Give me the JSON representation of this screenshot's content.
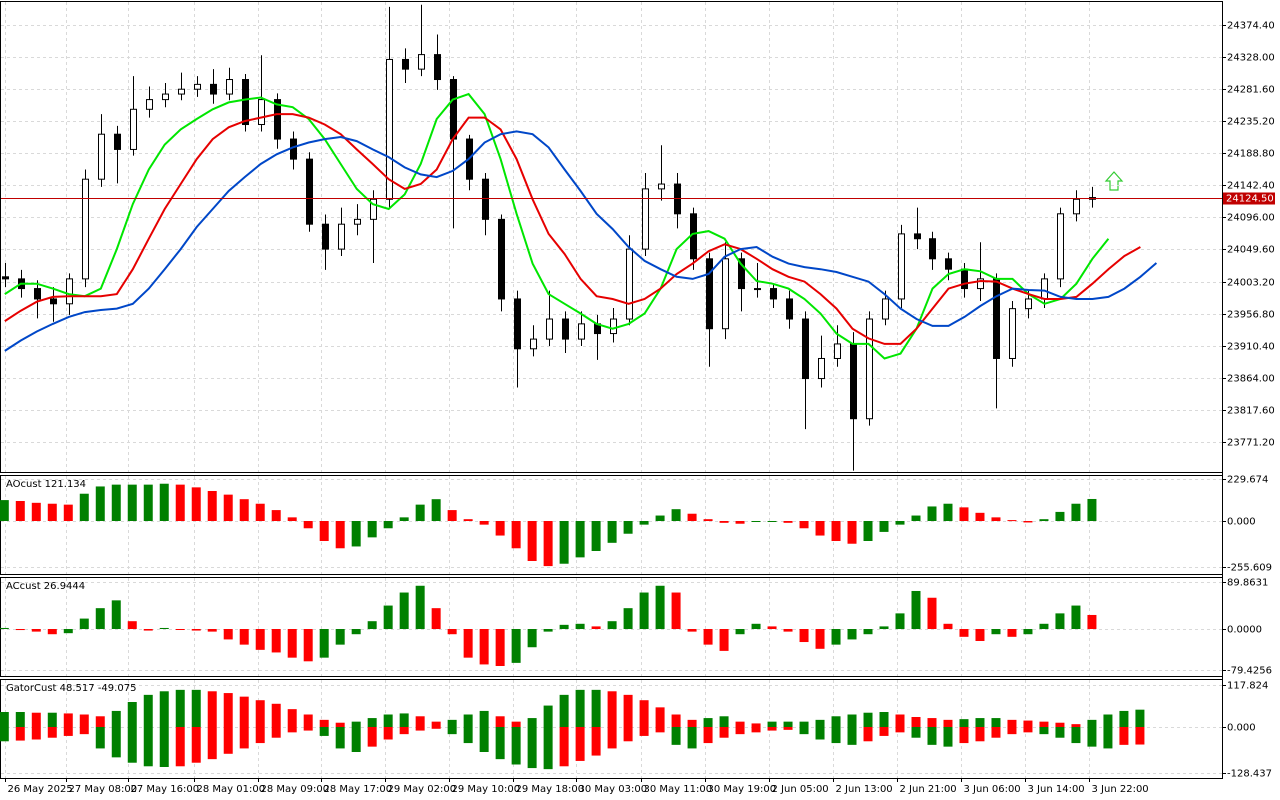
{
  "chart_data": [
    {
      "type": "candlestick",
      "xlim": [
        -0.3,
        76.1
      ],
      "xticks": [
        {
          "value": 0,
          "label": "26 May 2025"
        },
        {
          "value": 3.8,
          "label": "27 May 08:00"
        },
        {
          "value": 7.7,
          "label": "27 May 16:00"
        },
        {
          "value": 11.8,
          "label": "28 May 01:00"
        },
        {
          "value": 15.8,
          "label": "28 May 09:00"
        },
        {
          "value": 19.8,
          "label": "28 May 17:00"
        },
        {
          "value": 23.8,
          "label": "29 May 02:00"
        },
        {
          "value": 27.8,
          "label": "29 May 10:00"
        },
        {
          "value": 31.8,
          "label": "29 May 18:00"
        },
        {
          "value": 35.7,
          "label": "30 May 03:00"
        },
        {
          "value": 39.8,
          "label": "30 May 11:00"
        },
        {
          "value": 43.8,
          "label": "30 May 19:00"
        },
        {
          "value": 47.8,
          "label": "2 Jun 05:00"
        },
        {
          "value": 51.8,
          "label": "2 Jun 13:00"
        },
        {
          "value": 55.8,
          "label": "2 Jun 21:00"
        },
        {
          "value": 59.8,
          "label": "3 Jun 06:00"
        },
        {
          "value": 63.8,
          "label": "3 Jun 14:00"
        },
        {
          "value": 67.8,
          "label": "3 Jun 22:00"
        }
      ],
      "ylim": [
        23728,
        24407
      ],
      "yticks": [
        {
          "value": 24374.4,
          "label": "24374.40"
        },
        {
          "value": 24328,
          "label": "24328.00"
        },
        {
          "value": 24281.6,
          "label": "24281.60"
        },
        {
          "value": 24235.2,
          "label": "24235.20"
        },
        {
          "value": 24188.8,
          "label": "24188.80"
        },
        {
          "value": 24142.4,
          "label": "24142.40"
        },
        {
          "value": 24096,
          "label": "24096.00"
        },
        {
          "value": 24049.6,
          "label": "24049.60"
        },
        {
          "value": 24003.2,
          "label": "24003.20"
        },
        {
          "value": 23956.8,
          "label": "23956.80"
        },
        {
          "value": 23910.4,
          "label": "23910.40"
        },
        {
          "value": 23864,
          "label": "23864.00"
        },
        {
          "value": 23817.6,
          "label": "23817.60"
        },
        {
          "value": 23771.2,
          "label": "23771.20"
        }
      ],
      "grid": true,
      "up_color": "#ffffff",
      "down_color": "#000000",
      "candles": {
        "open": [
          24010,
          24007,
          23993,
          23978,
          23971,
          24007,
          24151,
          24216,
          24194,
          24252,
          24266,
          24274,
          24281,
          24288,
          24274,
          24295,
          24230,
          24266,
          24209,
          24180,
          24086,
          24050,
          24086,
          24093,
          24122,
          24324,
          24310,
          24331,
          24295,
          24209,
          24151,
          24093,
          23978,
          23906,
          23920,
          23949,
          23920,
          23942,
          23928,
          23949,
          24050,
          24137,
          24144,
          24101,
          24036,
          23935,
          24036,
          23993,
          23993,
          23978,
          23949,
          23863,
          23892,
          23913,
          23805,
          23949,
          23978,
          24072,
          24065,
          24036,
          24021,
          23993,
          24007,
          23892,
          23964,
          23978,
          24007,
          24101,
          24122
        ],
        "high": [
          24030,
          24020,
          24005,
          23995,
          24015,
          24165,
          24245,
          24228,
          24300,
          24285,
          24290,
          24305,
          24300,
          24310,
          24312,
          24303,
          24330,
          24275,
          24220,
          24190,
          24100,
          24110,
          24115,
          24135,
          24400,
          24340,
          24403,
          24360,
          24300,
          24215,
          24160,
          24100,
          23990,
          23940,
          23990,
          23960,
          23960,
          23955,
          23965,
          24070,
          24160,
          24200,
          24160,
          24110,
          24045,
          24060,
          24045,
          24030,
          24000,
          23990,
          23960,
          23925,
          23940,
          23930,
          23960,
          23990,
          24085,
          24110,
          24075,
          24045,
          24030,
          24060,
          24015,
          23975,
          23990,
          24015,
          24110,
          24135,
          24140
        ],
        "low": [
          23995,
          23980,
          23950,
          23945,
          23955,
          23995,
          24140,
          24145,
          24185,
          24240,
          24255,
          24265,
          24270,
          24260,
          24265,
          24220,
          24220,
          24195,
          24165,
          24075,
          24020,
          24040,
          24070,
          24030,
          24110,
          24290,
          24300,
          24280,
          24080,
          24135,
          24070,
          23960,
          23850,
          23895,
          23910,
          23900,
          23910,
          23890,
          23915,
          23940,
          24040,
          24120,
          24080,
          24020,
          23880,
          23920,
          23960,
          23980,
          23965,
          23935,
          23790,
          23850,
          23880,
          23730,
          23795,
          23940,
          23965,
          24050,
          24020,
          24005,
          23980,
          23975,
          23820,
          23880,
          23950,
          23965,
          23995,
          24090,
          24110
        ],
        "close": [
          24007,
          23993,
          23978,
          23971,
          24007,
          24151,
          24216,
          24194,
          24252,
          24266,
          24274,
          24281,
          24288,
          24274,
          24295,
          24230,
          24266,
          24209,
          24180,
          24086,
          24050,
          24086,
          24093,
          24122,
          24324,
          24310,
          24331,
          24295,
          24209,
          24151,
          24093,
          23978,
          23906,
          23920,
          23949,
          23920,
          23942,
          23928,
          23949,
          24050,
          24137,
          24144,
          24101,
          24036,
          23935,
          24036,
          23993,
          23993,
          23978,
          23949,
          23863,
          23892,
          23913,
          23805,
          23949,
          23978,
          24072,
          24065,
          24036,
          24021,
          23993,
          24007,
          23892,
          23964,
          23978,
          24007,
          24101,
          24122,
          24124.5
        ]
      },
      "lines": {
        "x": [
          0,
          1,
          2,
          3,
          4,
          5,
          6,
          7,
          8,
          9,
          10,
          11,
          12,
          13,
          14,
          15,
          16,
          17,
          18,
          19,
          20,
          21,
          22,
          23,
          24,
          25,
          26,
          27,
          28,
          29,
          30,
          31,
          32,
          33,
          34,
          35,
          36,
          37,
          38,
          39,
          40,
          41,
          42,
          43,
          44,
          45,
          46,
          47,
          48,
          49,
          50,
          51,
          52,
          53,
          54,
          55,
          56,
          57,
          58,
          59,
          60,
          61,
          62,
          63,
          64,
          65,
          66,
          67,
          68,
          69,
          70,
          71,
          72
        ],
        "series": [
          {
            "color": "#00e600",
            "values": [
              23985,
              24000,
              24000,
              23993,
              23985,
              23982,
              23993,
              24050,
              24115,
              24165,
              24201,
              24223,
              24238,
              24252,
              24262,
              24266,
              24269,
              24259,
              24255,
              24238,
              24209,
              24173,
              24137,
              24115,
              24108,
              24129,
              24173,
              24238,
              24266,
              24274,
              24245,
              24180,
              24101,
              24029,
              23985,
              23971,
              23957,
              23942,
              23935,
              23942,
              23957,
              23993,
              24050,
              24072,
              24076,
              24065,
              24029,
              24004,
              24000,
              23993,
              23978,
              23957,
              23928,
              23913,
              23913,
              23892,
              23899,
              23935,
              23993,
              24014,
              24021,
              24018,
              24007,
              24007,
              23985,
              23971,
              23978,
              24000,
              24036,
              24065,
              null,
              null,
              null
            ]
          },
          {
            "color": "#e60000",
            "values": [
              23946,
              23961,
              23974,
              23981,
              23982,
              23982,
              23982,
              23985,
              24021,
              24065,
              24108,
              24144,
              24180,
              24209,
              24226,
              24235,
              24240,
              24245,
              24245,
              24240,
              24230,
              24216,
              24194,
              24173,
              24151,
              24137,
              24144,
              24165,
              24209,
              24240,
              24240,
              24223,
              24180,
              24122,
              24072,
              24043,
              24007,
              23982,
              23978,
              23971,
              23978,
              23993,
              24014,
              24029,
              24047,
              24057,
              24050,
              24036,
              24021,
              24010,
              24003,
              23985,
              23964,
              23935,
              23921,
              23913,
              23913,
              23935,
              23964,
              23993,
              24000,
              24004,
              24003,
              23993,
              23985,
              23978,
              23978,
              23981,
              24000,
              24021,
              24040,
              24053,
              null
            ]
          },
          {
            "color": "#0047c8",
            "values": [
              23903,
              23918,
              23931,
              23942,
              23952,
              23959,
              23962,
              23964,
              23971,
              23993,
              24021,
              24050,
              24082,
              24108,
              24134,
              24154,
              24173,
              24187,
              24197,
              24204,
              24209,
              24212,
              24206,
              24194,
              24183,
              24168,
              24158,
              24154,
              24163,
              24180,
              24204,
              24216,
              24220,
              24216,
              24197,
              24165,
              24134,
              24101,
              24079,
              24053,
              24033,
              24021,
              24010,
              24007,
              24014,
              24039,
              24050,
              24053,
              24039,
              24029,
              24024,
              24021,
              24017,
              24010,
              24003,
              23985,
              23964,
              23949,
              23939,
              23939,
              23952,
              23968,
              23982,
              23993,
              23991,
              23990,
              23981,
              23978,
              23978,
              23981,
              23993,
              24010,
              24030
            ]
          }
        ]
      },
      "price_line": {
        "value": 24124.5,
        "label": "24124.50",
        "color": "#c00000"
      }
    },
    {
      "type": "bar",
      "label": "AOcust 121.134",
      "ylim": [
        -291.5,
        247.5
      ],
      "yticks": [
        {
          "value": 229.674,
          "label": "229.674"
        },
        {
          "value": 0,
          "label": "0.000"
        },
        {
          "value": -255.609,
          "label": "-255.609"
        }
      ],
      "up_color": "#008000",
      "down_color": "#ff0000",
      "values": [
        115,
        110,
        100,
        95,
        90,
        150,
        190,
        200,
        200,
        200,
        205,
        200,
        185,
        165,
        145,
        120,
        95,
        60,
        20,
        -40,
        -110,
        -150,
        -140,
        -90,
        -40,
        20,
        90,
        120,
        60,
        10,
        -20,
        -80,
        -150,
        -220,
        -248,
        -235,
        -200,
        -165,
        -120,
        -70,
        -20,
        30,
        65,
        40,
        10,
        -10,
        -15,
        -5,
        0,
        -10,
        -40,
        -80,
        -110,
        -125,
        -110,
        -60,
        -20,
        30,
        80,
        95,
        75,
        45,
        20,
        5,
        -8,
        10,
        50,
        95,
        121.134
      ]
    },
    {
      "type": "bar",
      "label": "ACcust 26.9444",
      "ylim": [
        -90.2,
        97.9
      ],
      "yticks": [
        {
          "value": 89.8631,
          "label": "89.8631"
        },
        {
          "value": 0,
          "label": "0.0000"
        },
        {
          "value": -79.4256,
          "label": "-79.4256"
        }
      ],
      "up_color": "#008000",
      "down_color": "#ff0000",
      "values": [
        2,
        -2,
        -5,
        -10,
        -8,
        20,
        40,
        55,
        15,
        -3,
        2,
        0,
        -3,
        -5,
        -20,
        -30,
        -40,
        -45,
        -55,
        -62,
        -55,
        -30,
        -10,
        15,
        45,
        70,
        83,
        40,
        -10,
        -55,
        -68,
        -71,
        -65,
        -35,
        -5,
        8,
        10,
        5,
        15,
        40,
        70,
        83,
        70,
        -5,
        -30,
        -42,
        -10,
        10,
        5,
        -5,
        -25,
        -38,
        -30,
        -20,
        -10,
        5,
        30,
        73,
        60,
        10,
        -15,
        -23,
        -10,
        -15,
        -10,
        10,
        30,
        45,
        26.9444
      ]
    },
    {
      "type": "gator",
      "label": "GatorCust 48.517 -49.075",
      "ylim": [
        -142.8,
        131.6
      ],
      "yticks": [
        {
          "value": 117.824,
          "label": "117.824"
        },
        {
          "value": 0,
          "label": "0.000"
        },
        {
          "value": -128.437,
          "label": "-128.437"
        }
      ],
      "up_color": "#008000",
      "down_color": "#ff0000",
      "series": [
        {
          "values": [
            42,
            42,
            40,
            40,
            38,
            35,
            30,
            45,
            70,
            90,
            100,
            104,
            104,
            100,
            95,
            85,
            75,
            65,
            50,
            35,
            20,
            12,
            15,
            25,
            35,
            38,
            30,
            15,
            20,
            35,
            45,
            30,
            15,
            25,
            60,
            90,
            104,
            104,
            100,
            90,
            75,
            55,
            35,
            20,
            25,
            30,
            15,
            10,
            15,
            15,
            15,
            20,
            30,
            35,
            40,
            42,
            35,
            28,
            25,
            20,
            22,
            25,
            25,
            20,
            18,
            15,
            12,
            8,
            20,
            35,
            45,
            48.517
          ]
        },
        {
          "values": [
            -40,
            -38,
            -35,
            -30,
            -25,
            -20,
            -60,
            -85,
            -100,
            -110,
            -112,
            -110,
            -100,
            -90,
            -75,
            -60,
            -45,
            -30,
            -15,
            -10,
            -25,
            -60,
            -70,
            -55,
            -35,
            -20,
            -10,
            -5,
            -20,
            -45,
            -70,
            -90,
            -105,
            -115,
            -118,
            -110,
            -95,
            -80,
            -60,
            -40,
            -25,
            -15,
            -50,
            -60,
            -45,
            -30,
            -20,
            -15,
            -10,
            -8,
            -20,
            -35,
            -45,
            -50,
            -40,
            -25,
            -15,
            -30,
            -50,
            -55,
            -45,
            -40,
            -30,
            -20,
            -15,
            -20,
            -30,
            -45,
            -55,
            -60,
            -50,
            -49.075
          ]
        }
      ]
    }
  ]
}
